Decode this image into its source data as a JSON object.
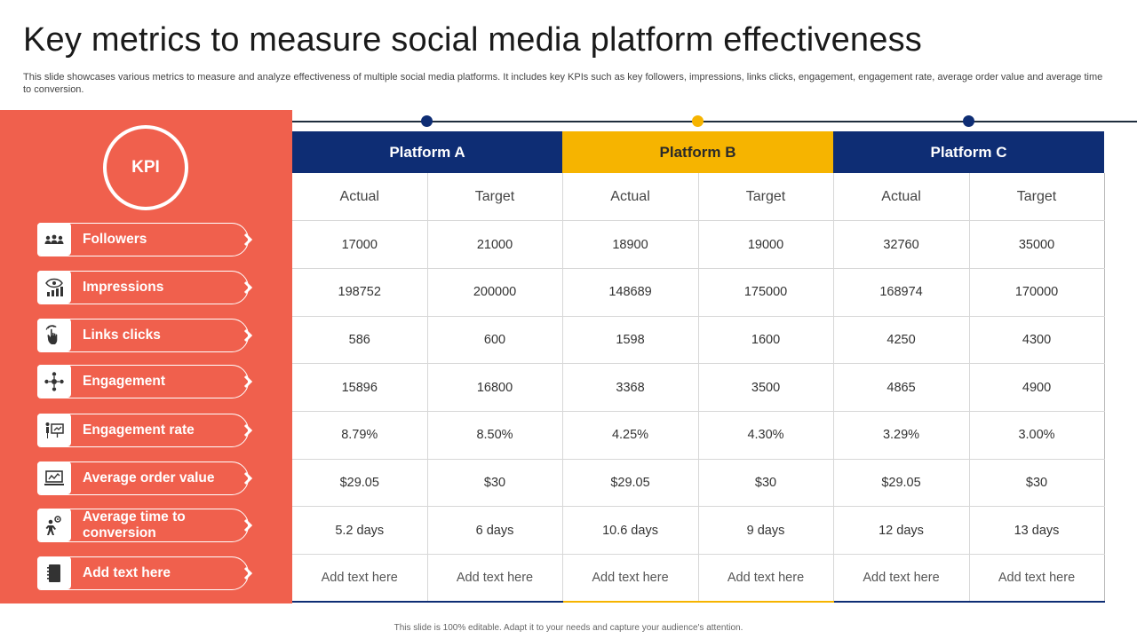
{
  "title": "Key metrics to measure social media platform effectiveness",
  "subtitle": "This slide showcases various metrics to measure and analyze effectiveness of multiple social media platforms. It includes key KPIs such as key followers, impressions, links clicks, engagement, engagement rate, average order value and average time to conversion.",
  "kpi_header": "KPI",
  "kpis": [
    {
      "label": "Followers",
      "icon": "people-group-icon"
    },
    {
      "label": "Impressions",
      "icon": "eye-bar-chart-icon"
    },
    {
      "label": "Links clicks",
      "icon": "hand-pointer-icon"
    },
    {
      "label": "Engagement",
      "icon": "network-people-icon"
    },
    {
      "label": "Engagement rate",
      "icon": "presentation-icon"
    },
    {
      "label": "Average order value",
      "icon": "laptop-chart-icon"
    },
    {
      "label": "Average time to conversion",
      "icon": "person-gear-icon"
    },
    {
      "label": "Add text here",
      "icon": "notebook-icon"
    }
  ],
  "platforms": [
    {
      "name": "Platform A",
      "color": "#0e2d74"
    },
    {
      "name": "Platform B",
      "color": "#f6b400"
    },
    {
      "name": "Platform C",
      "color": "#0e2d74"
    }
  ],
  "subheaders": [
    "Actual",
    "Target",
    "Actual",
    "Target",
    "Actual",
    "Target"
  ],
  "rows": [
    [
      "17000",
      "21000",
      "18900",
      "19000",
      "32760",
      "35000"
    ],
    [
      "198752",
      "200000",
      "148689",
      "175000",
      "168974",
      "170000"
    ],
    [
      "586",
      "600",
      "1598",
      "1600",
      "4250",
      "4300"
    ],
    [
      "15896",
      "16800",
      "3368",
      "3500",
      "4865",
      "4900"
    ],
    [
      "8.79%",
      "8.50%",
      "4.25%",
      "4.30%",
      "3.29%",
      "3.00%"
    ],
    [
      "$29.05",
      "$30",
      "$29.05",
      "$30",
      "$29.05",
      "$30"
    ],
    [
      "5.2 days",
      "6 days",
      "10.6 days",
      "9 days",
      "12 days",
      "13 days"
    ],
    [
      "Add text here",
      "Add text here",
      "Add text here",
      "Add text here",
      "Add text here",
      "Add text here"
    ]
  ],
  "footer": "This slide is 100% editable. Adapt it to your needs and capture your audience's attention.",
  "colors": {
    "panel": "#f0604d",
    "navy": "#0e2d74",
    "yellow": "#f6b400"
  }
}
